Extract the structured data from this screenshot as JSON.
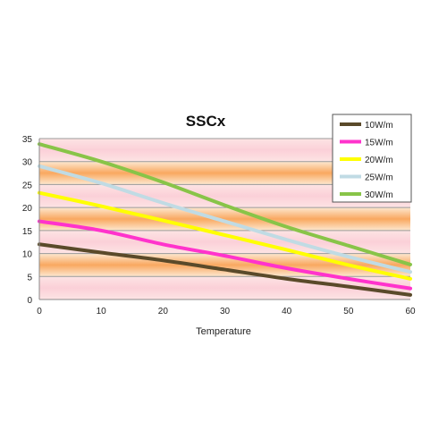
{
  "chart_data": {
    "type": "line",
    "title": "SSCx",
    "xlabel": "Temperature",
    "ylabel": "",
    "xlim": [
      0,
      60
    ],
    "ylim": [
      0,
      35
    ],
    "xticks": [
      0,
      10,
      20,
      30,
      40,
      50,
      60
    ],
    "yticks": [
      0,
      5,
      10,
      15,
      20,
      25,
      30,
      35
    ],
    "grid": true,
    "legend_position": "top-right",
    "x": [
      0,
      10,
      20,
      30,
      40,
      50,
      60
    ],
    "series": [
      {
        "name": "10W/m",
        "color": "#5a4a2a",
        "values": [
          12,
          10.2,
          8.5,
          6.5,
          4.5,
          2.8,
          1.0
        ]
      },
      {
        "name": "15W/m",
        "color": "#ff33cc",
        "values": [
          17,
          15,
          12,
          9.5,
          6.8,
          4.5,
          2.4
        ]
      },
      {
        "name": "20W/m",
        "color": "#ffff00",
        "values": [
          23.2,
          20.3,
          17.2,
          14,
          10.8,
          7.5,
          4.5
        ]
      },
      {
        "name": "25W/m",
        "color": "#c0dbe4",
        "values": [
          29,
          25.3,
          21,
          17,
          13,
          9.3,
          6
        ]
      },
      {
        "name": "30W/m",
        "color": "#88c448",
        "values": [
          33.8,
          30,
          25.5,
          20.5,
          15.8,
          11.7,
          7.6
        ]
      }
    ]
  }
}
